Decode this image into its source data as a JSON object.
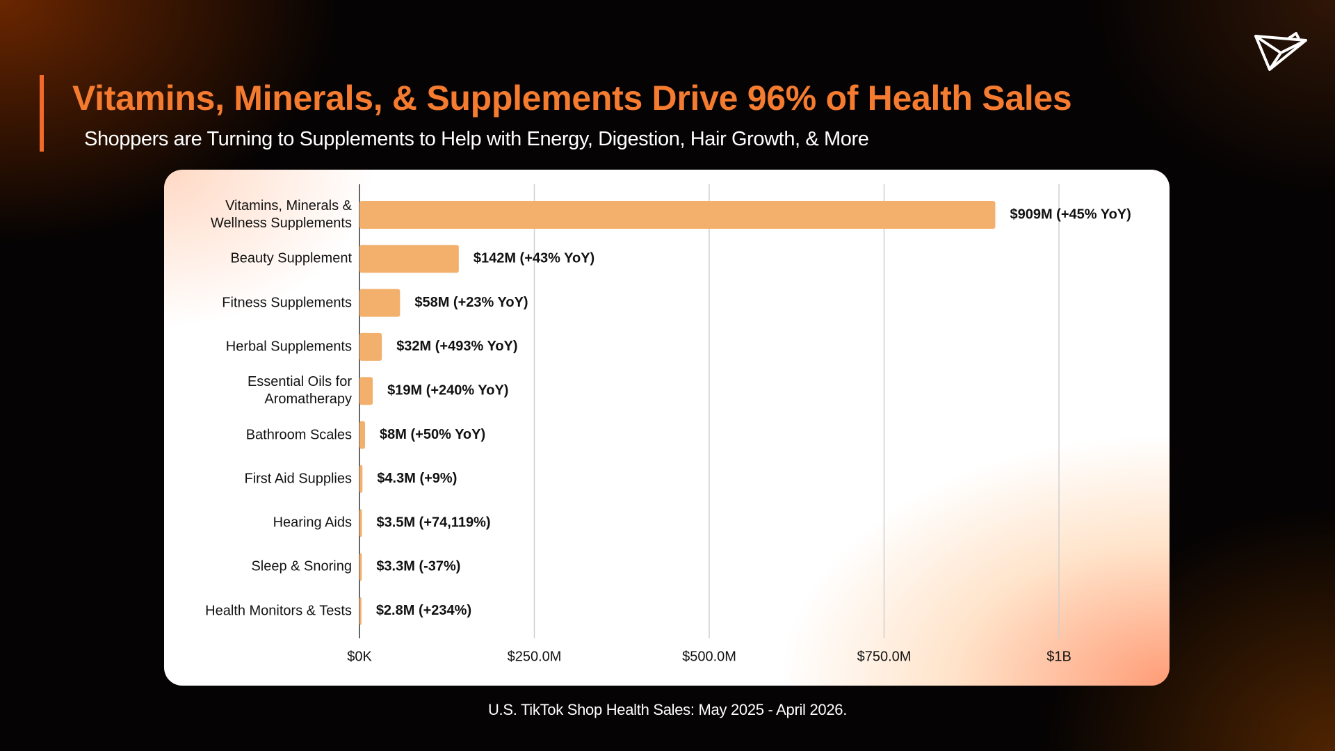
{
  "header": {
    "title": "Vitamins, Minerals, & Supplements Drive 96% of Health Sales",
    "subtitle": "Shoppers are Turning to Supplements to Help with Energy, Digestion, Hair Growth, & More"
  },
  "footer": {
    "note": "U.S. TikTok Shop Health Sales: May 2025 - April 2026."
  },
  "chart_data": {
    "type": "hbar",
    "color": "#f3b06d",
    "categories": [
      "Vitamins, Minerals & Wellness Supplements",
      "Beauty Supplement",
      "Fitness Supplements",
      "Herbal Supplements",
      "Essential Oils for Aromatherapy",
      "Bathroom Scales",
      "First Aid Supplies",
      "Hearing Aids",
      "Sleep & Snoring",
      "Health Monitors & Tests"
    ],
    "values": [
      909000000,
      142000000,
      58000000,
      32000000,
      19000000,
      8000000,
      4300000,
      3500000,
      3300000,
      2800000
    ],
    "value_labels": [
      "$909M (+45% YoY)",
      "$142M (+43% YoY)",
      "$58M (+23% YoY)",
      "$32M (+493% YoY)",
      "$19M (+240% YoY)",
      "$8M (+50% YoY)",
      "$4.3M (+9%)",
      "$3.5M (+74,119%)",
      "$3.3M (-37%)",
      "$2.8M (+234%)"
    ],
    "xlim": [
      0,
      1000000000
    ],
    "xticks": [
      {
        "value": 0,
        "label": "$0K"
      },
      {
        "value": 250000000,
        "label": "$250.0M"
      },
      {
        "value": 500000000,
        "label": "$500.0M"
      },
      {
        "value": 750000000,
        "label": "$750.0M"
      },
      {
        "value": 1000000000,
        "label": "$1B"
      }
    ],
    "grid": true
  }
}
